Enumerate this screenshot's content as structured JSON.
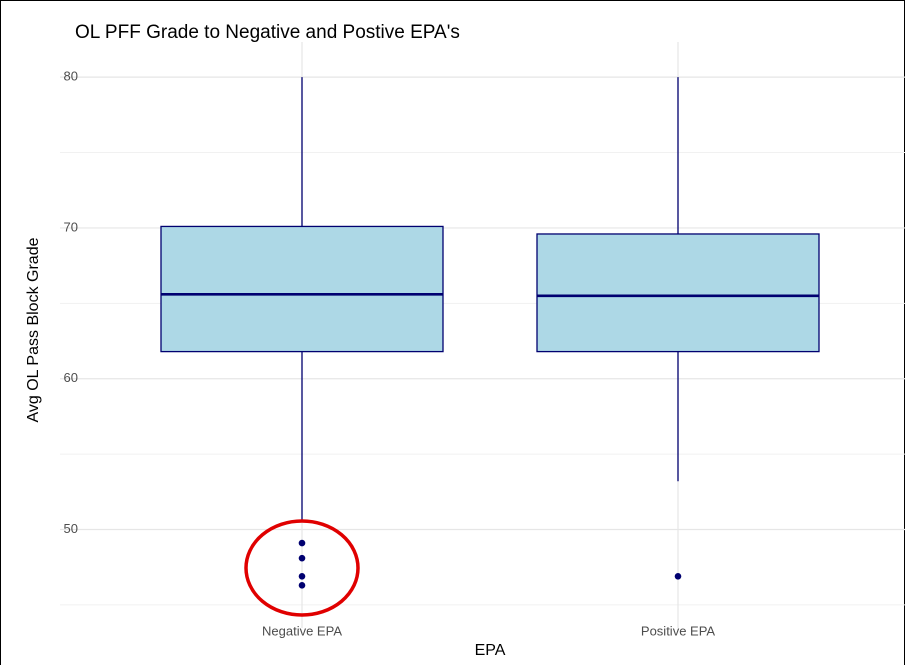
{
  "chart_data": {
    "type": "box",
    "title": "OL PFF Grade to Negative and Postive EPA's",
    "x_label": "EPA",
    "y_label": "Avg OL Pass Block Grade",
    "categories": [
      "Negative EPA",
      "Positive EPA"
    ],
    "boxes": [
      {
        "min": 50.5,
        "q1": 61.8,
        "median": 65.6,
        "q3": 70.1,
        "max": 80,
        "outliers": [
          49.1,
          48.1,
          46.9,
          46.3
        ]
      },
      {
        "min": 53.2,
        "q1": 61.8,
        "median": 65.5,
        "q3": 69.6,
        "max": 80,
        "outliers": [
          46.9
        ]
      }
    ],
    "fill": "#add8e6",
    "color": "#000070",
    "ylim": [
      44,
      82
    ],
    "yticks": [
      50,
      60,
      70,
      80
    ],
    "minor_yticks": [
      45,
      55,
      65,
      75
    ],
    "grid": true
  }
}
